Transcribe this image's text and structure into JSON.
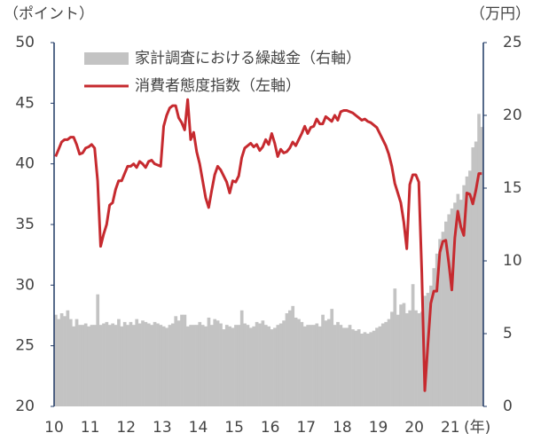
{
  "chart_data": {
    "type": "bar_line",
    "y_label": "（ポイント）",
    "y2_label": "（万円）",
    "x_label": "(年)",
    "categories": [
      "10",
      null,
      null,
      null,
      null,
      null,
      null,
      null,
      null,
      null,
      null,
      null,
      "11",
      null,
      null,
      null,
      null,
      null,
      null,
      null,
      null,
      null,
      null,
      null,
      "12",
      null,
      null,
      null,
      null,
      null,
      null,
      null,
      null,
      null,
      null,
      null,
      "13",
      null,
      null,
      null,
      null,
      null,
      null,
      null,
      null,
      null,
      null,
      null,
      "14",
      null,
      null,
      null,
      null,
      null,
      null,
      null,
      null,
      null,
      null,
      null,
      "15",
      null,
      null,
      null,
      null,
      null,
      null,
      null,
      null,
      null,
      null,
      null,
      "16",
      null,
      null,
      null,
      null,
      null,
      null,
      null,
      null,
      null,
      null,
      null,
      "17",
      null,
      null,
      null,
      null,
      null,
      null,
      null,
      null,
      null,
      null,
      null,
      "18",
      null,
      null,
      null,
      null,
      null,
      null,
      null,
      null,
      null,
      null,
      null,
      "19",
      null,
      null,
      null,
      null,
      null,
      null,
      null,
      null,
      null,
      null,
      null,
      "20",
      null,
      null,
      null,
      null,
      null,
      null,
      null,
      null,
      null,
      null,
      null,
      "21",
      null,
      null,
      null,
      null,
      null,
      null,
      null,
      null,
      null,
      null
    ],
    "series": [
      {
        "name": "家計調査における繰越金（右軸）",
        "type": "bar",
        "axis": "y2",
        "color": "#c3c3c3",
        "values": [
          6.3,
          6.0,
          6.4,
          6.2,
          6.6,
          6.0,
          5.5,
          6.0,
          5.6,
          5.6,
          5.7,
          5.5,
          5.6,
          5.6,
          7.7,
          5.6,
          5.7,
          5.8,
          5.6,
          5.7,
          5.6,
          6.0,
          5.5,
          5.8,
          5.6,
          5.8,
          5.6,
          6.0,
          5.7,
          5.9,
          5.8,
          5.7,
          5.6,
          5.8,
          5.7,
          5.6,
          5.5,
          5.4,
          5.6,
          5.7,
          6.2,
          5.9,
          6.3,
          6.3,
          5.5,
          5.6,
          5.6,
          5.6,
          5.8,
          5.6,
          5.5,
          6.1,
          5.6,
          6.0,
          5.9,
          5.7,
          5.3,
          5.6,
          5.5,
          5.4,
          5.6,
          5.6,
          6.6,
          5.7,
          5.6,
          5.4,
          5.5,
          5.8,
          5.7,
          5.9,
          5.6,
          5.5,
          5.3,
          5.4,
          5.6,
          5.7,
          5.9,
          6.4,
          6.6,
          6.9,
          6.1,
          6.0,
          5.8,
          5.5,
          5.6,
          5.6,
          5.6,
          5.7,
          5.5,
          6.3,
          5.9,
          6.0,
          6.7,
          5.6,
          5.8,
          5.6,
          5.4,
          5.4,
          5.6,
          5.3,
          5.2,
          5.3,
          5.0,
          5.1,
          5.0,
          5.1,
          5.2,
          5.4,
          5.5,
          5.7,
          5.8,
          6.0,
          6.5,
          8.1,
          6.3,
          7.0,
          7.1,
          6.4,
          6.6,
          8.4,
          6.6,
          6.4,
          6.5,
          7.6,
          7.8,
          8.3,
          9.5,
          10.5,
          11.5,
          12.0,
          12.7,
          13.2,
          13.6,
          14.0,
          14.6,
          14.2,
          15.2,
          15.8,
          16.2,
          17.8,
          18.2,
          20.1,
          19.2
        ]
      },
      {
        "name": "消費者態度指数（左軸）",
        "type": "line",
        "axis": "y",
        "color": "#c62a2f",
        "values": [
          40.6,
          41.2,
          41.8,
          42.0,
          42.0,
          42.2,
          42.2,
          41.6,
          40.8,
          40.9,
          41.3,
          41.4,
          41.6,
          41.3,
          38.6,
          33.2,
          34.2,
          35.0,
          36.6,
          36.8,
          37.9,
          38.6,
          38.6,
          39.2,
          39.8,
          39.8,
          40.0,
          39.7,
          40.2,
          40.0,
          39.7,
          40.2,
          40.3,
          40.0,
          39.9,
          39.8,
          43.1,
          44.0,
          44.6,
          44.8,
          44.8,
          43.8,
          43.4,
          42.8,
          45.3,
          42.0,
          42.6,
          41.0,
          40.0,
          38.6,
          37.2,
          36.4,
          37.8,
          39.1,
          39.8,
          39.5,
          39.0,
          38.5,
          37.6,
          38.6,
          38.5,
          39.0,
          40.5,
          41.3,
          41.5,
          41.7,
          41.4,
          41.6,
          41.1,
          41.4,
          42.0,
          41.6,
          42.5,
          41.7,
          40.6,
          41.2,
          40.9,
          41.0,
          41.3,
          41.8,
          41.5,
          42.0,
          42.5,
          43.1,
          42.5,
          43.0,
          43.1,
          43.7,
          43.3,
          43.3,
          43.9,
          43.7,
          43.5,
          44.0,
          43.6,
          44.3,
          44.4,
          44.4,
          44.3,
          44.2,
          44.0,
          43.8,
          43.6,
          43.7,
          43.5,
          43.4,
          43.2,
          43.0,
          42.5,
          42.0,
          41.5,
          40.8,
          39.8,
          38.4,
          37.6,
          36.8,
          35.2,
          33.0,
          38.3,
          39.1,
          39.1,
          38.5,
          31.0,
          21.3,
          25.0,
          28.5,
          29.5,
          29.5,
          32.7,
          33.6,
          33.7,
          31.8,
          29.6,
          33.9,
          36.1,
          34.8,
          34.1,
          37.6,
          37.5,
          36.7,
          37.8,
          39.2,
          39.2
        ]
      }
    ],
    "ylim": [
      20,
      50
    ],
    "yticks": [
      20,
      25,
      30,
      35,
      40,
      45,
      50
    ],
    "y2lim": [
      0,
      25
    ],
    "y2ticks": [
      0,
      5,
      10,
      15,
      20,
      25
    ],
    "legend": "top-left"
  }
}
